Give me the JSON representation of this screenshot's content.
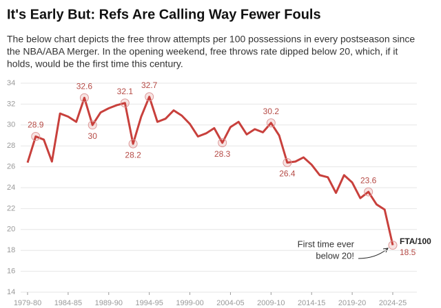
{
  "chart_data": {
    "type": "line",
    "title": "It's Early But: Refs Are Calling Way Fewer Fouls",
    "subtitle": [
      "The below chart depicts the free throw attempts per 100 possessions in every postseason since",
      "the NBA/ABA Merger. In the opening weekend, free throws rate dipped below 20, which, if it",
      "holds, would be the first time this century."
    ],
    "categories": [
      "1979-80",
      null,
      null,
      null,
      null,
      "1984-85",
      null,
      null,
      null,
      null,
      "1989-90",
      null,
      null,
      null,
      null,
      "1994-95",
      null,
      null,
      null,
      null,
      "1999-00",
      null,
      null,
      null,
      null,
      "2004-05",
      null,
      null,
      null,
      null,
      "2009-10",
      null,
      null,
      null,
      null,
      "2014-15",
      null,
      null,
      null,
      null,
      "2019-20",
      null,
      null,
      null,
      null,
      "2024-25"
    ],
    "series": [
      {
        "name": "FTA/100",
        "color": "#c8403c",
        "values": [
          26.4,
          28.9,
          28.6,
          26.5,
          31.1,
          30.8,
          30.3,
          32.6,
          30,
          31.2,
          31.6,
          31.9,
          32.1,
          28.2,
          30.8,
          32.7,
          30.3,
          30.6,
          31.4,
          30.9,
          30.1,
          28.9,
          29.2,
          29.7,
          28.3,
          29.8,
          30.3,
          29.1,
          29.6,
          29.3,
          30.2,
          29.0,
          26.4,
          26.5,
          26.9,
          26.2,
          25.2,
          25.0,
          23.5,
          25.2,
          24.5,
          23.0,
          23.6,
          22.4,
          21.9,
          18.5
        ],
        "value_labels": [
          null,
          "28.9",
          null,
          null,
          null,
          null,
          null,
          "32.6",
          "30",
          null,
          null,
          null,
          "32.1",
          "28.2",
          null,
          "32.7",
          null,
          null,
          null,
          null,
          null,
          null,
          null,
          null,
          "28.3",
          null,
          null,
          null,
          null,
          null,
          "30.2",
          null,
          "26.4",
          null,
          null,
          null,
          null,
          null,
          null,
          null,
          null,
          null,
          "23.6",
          null,
          null,
          "18.5"
        ]
      }
    ],
    "annotation": [
      "First time ever",
      "below 20!"
    ],
    "ylim": [
      14,
      34
    ],
    "yticks": [
      14,
      16,
      18,
      20,
      22,
      24,
      26,
      28,
      30,
      32,
      34
    ],
    "grid": true
  }
}
